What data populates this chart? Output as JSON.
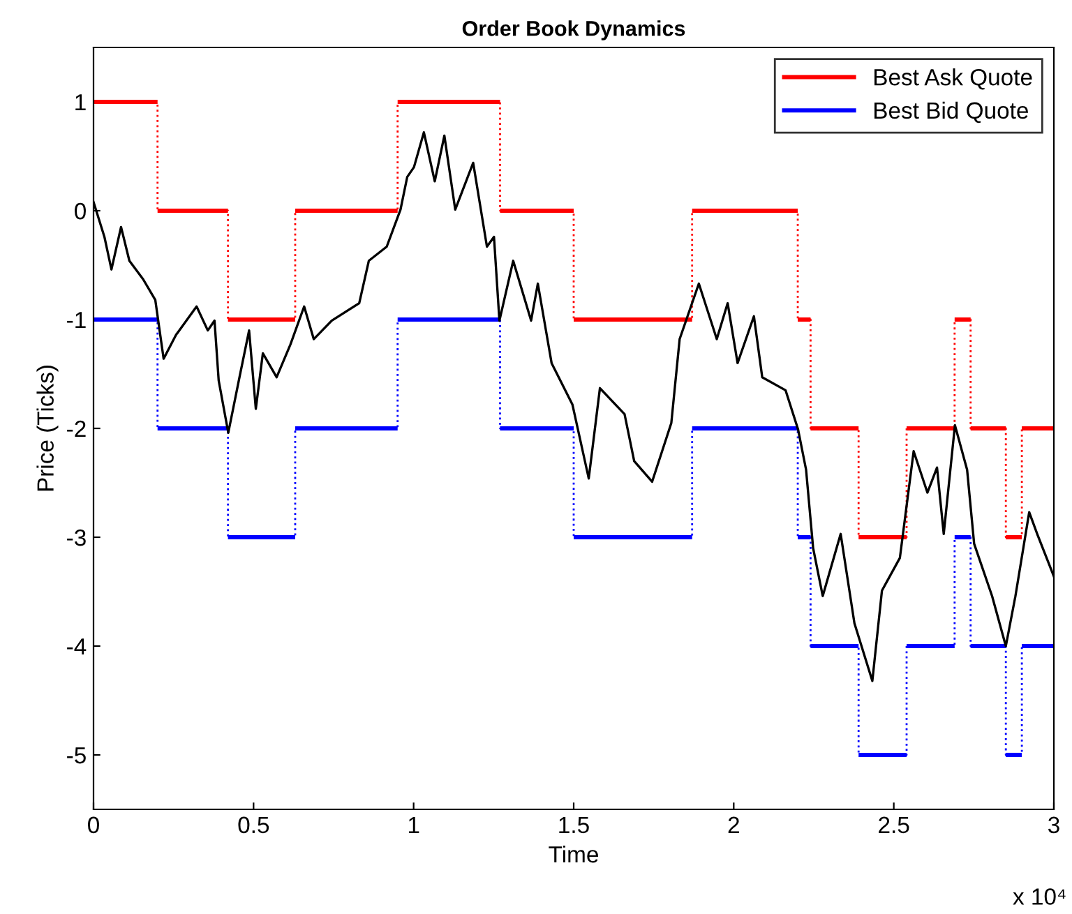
{
  "chart_data": {
    "type": "line",
    "title": "Order Book Dynamics",
    "xlabel": "Time",
    "ylabel": "Price (Ticks)",
    "annotations": [
      "x 10⁴"
    ],
    "xlim": [
      0,
      3
    ],
    "ylim": [
      -5.5,
      1.5
    ],
    "xticks": [
      0,
      0.5,
      1,
      1.5,
      2,
      2.5,
      3
    ],
    "yticks": [
      -5,
      -4,
      -3,
      -2,
      -1,
      0,
      1
    ],
    "grid": false,
    "legend": "top right",
    "marker": "none",
    "series": [
      {
        "name": "Best Ask Quote",
        "type": "step",
        "color": "#ff0000",
        "x": [
          0,
          0.2,
          0.42,
          0.63,
          0.95,
          1.27,
          1.5,
          1.87,
          2.2,
          2.24,
          2.39,
          2.54,
          2.69,
          2.74,
          2.85,
          2.9,
          3
        ],
        "values": [
          1,
          0,
          -1,
          0,
          1,
          0,
          -1,
          0,
          -1,
          -2,
          -3,
          -2,
          -1,
          -2,
          -3,
          -2,
          -2
        ]
      },
      {
        "name": "Best Bid Quote",
        "type": "step",
        "color": "#0000ff",
        "x": [
          0,
          0.2,
          0.42,
          0.63,
          0.95,
          1.27,
          1.5,
          1.87,
          2.2,
          2.24,
          2.39,
          2.54,
          2.69,
          2.74,
          2.85,
          2.9,
          3
        ],
        "values": [
          -1,
          -2,
          -3,
          -2,
          -1,
          -2,
          -3,
          -2,
          -3,
          -4,
          -5,
          -4,
          -3,
          -4,
          -5,
          -4,
          -4
        ]
      },
      {
        "color": "#000000",
        "x": [
          0,
          0.034,
          0.056,
          0.086,
          0.112,
          0.155,
          0.193,
          0.219,
          0.258,
          0.322,
          0.357,
          0.378,
          0.391,
          0.421,
          0.456,
          0.486,
          0.507,
          0.529,
          0.572,
          0.615,
          0.658,
          0.688,
          0.744,
          0.83,
          0.86,
          0.916,
          0.959,
          0.98,
          1.001,
          1.032,
          1.066,
          1.096,
          1.13,
          1.186,
          1.229,
          1.251,
          1.268,
          1.311,
          1.367,
          1.388,
          1.431,
          1.496,
          1.547,
          1.582,
          1.659,
          1.689,
          1.745,
          1.805,
          1.831,
          1.891,
          1.947,
          1.981,
          2.012,
          2.063,
          2.089,
          2.162,
          2.201,
          2.226,
          2.248,
          2.278,
          2.334,
          2.377,
          2.433,
          2.463,
          2.519,
          2.562,
          2.605,
          2.635,
          2.656,
          2.691,
          2.729,
          2.751,
          2.807,
          2.85,
          2.88,
          2.923,
          2.948,
          3
        ],
        "values": [
          0.08,
          -0.24,
          -0.54,
          -0.15,
          -0.46,
          -0.63,
          -0.82,
          -1.36,
          -1.14,
          -0.88,
          -1.1,
          -1.01,
          -1.56,
          -2.04,
          -1.53,
          -1.1,
          -1.82,
          -1.31,
          -1.53,
          -1.23,
          -0.88,
          -1.18,
          -1.01,
          -0.85,
          -0.46,
          -0.33,
          0.01,
          0.31,
          0.4,
          0.72,
          0.27,
          0.69,
          0.01,
          0.44,
          -0.33,
          -0.24,
          -1.01,
          -0.46,
          -1.01,
          -0.67,
          -1.4,
          -1.78,
          -2.46,
          -1.63,
          -1.87,
          -2.3,
          -2.49,
          -1.95,
          -1.18,
          -0.67,
          -1.18,
          -0.85,
          -1.4,
          -0.97,
          -1.53,
          -1.65,
          -2.01,
          -2.38,
          -3.1,
          -3.54,
          -2.97,
          -3.79,
          -4.32,
          -3.49,
          -3.19,
          -2.21,
          -2.59,
          -2.36,
          -2.97,
          -1.97,
          -2.38,
          -3.06,
          -3.54,
          -4.0,
          -3.54,
          -2.77,
          -2.97,
          -3.36
        ]
      }
    ]
  }
}
